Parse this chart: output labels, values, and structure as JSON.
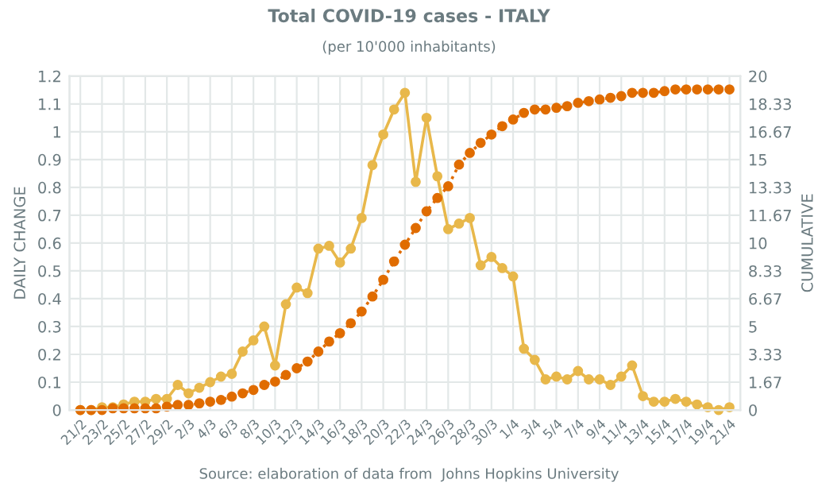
{
  "chart_data": {
    "type": "line",
    "title": "Total COVID-19 cases - ITALY",
    "subtitle": "(per 10'000 inhabitants)",
    "ylabel": "DAILY CHANGE",
    "y2label": "CUMULATIVE",
    "annotations": [
      "Source: elaboration of data from  Johns Hopkins University"
    ],
    "categories": [
      "21/2",
      null,
      "23/2",
      null,
      "25/2",
      null,
      "27/2",
      null,
      "29/2",
      null,
      "2/3",
      null,
      "4/3",
      null,
      "6/3",
      null,
      "8/3",
      null,
      "10/3",
      null,
      "12/3",
      null,
      "14/3",
      null,
      "16/3",
      null,
      "18/3",
      null,
      "20/3",
      null,
      "22/3",
      null,
      "24/3",
      null,
      "26/3",
      null,
      "28/3",
      null,
      "30/3",
      null,
      "1/4",
      null,
      "3/4",
      null,
      "5/4",
      null,
      "7/4",
      null,
      "9/4",
      null,
      "11/4",
      null,
      "13/4",
      null,
      "15/4",
      null,
      "17/4",
      null,
      "19/4",
      null,
      "21/4"
    ],
    "series": [
      {
        "color": "#e8b84b",
        "line_style": "solid",
        "values": [
          0.0,
          0.0,
          0.01,
          0.01,
          0.02,
          0.03,
          0.03,
          0.04,
          0.04,
          0.09,
          0.06,
          0.08,
          0.1,
          0.12,
          0.13,
          0.21,
          0.25,
          0.3,
          0.16,
          0.38,
          0.44,
          0.42,
          0.58,
          0.59,
          0.53,
          0.58,
          0.69,
          0.88,
          0.99,
          1.08,
          1.14,
          0.82,
          1.05,
          0.84,
          0.65,
          0.67,
          0.69,
          0.52,
          0.55,
          0.51,
          0.48,
          0.22,
          0.18,
          0.11,
          0.12,
          0.11,
          0.14,
          0.11,
          0.11,
          0.09,
          0.12,
          0.16,
          0.05,
          0.03,
          0.03,
          0.04,
          0.03,
          0.02,
          0.01,
          0.0,
          0.01
        ]
      },
      {
        "color": "#e06c00",
        "line_style": "dotted",
        "axis": "y2",
        "values": [
          0.0,
          0.0,
          0.0,
          0.1,
          0.1,
          0.1,
          0.1,
          0.1,
          0.2,
          0.3,
          0.3,
          0.4,
          0.5,
          0.6,
          0.8,
          1.0,
          1.2,
          1.5,
          1.7,
          2.1,
          2.5,
          2.9,
          3.5,
          4.1,
          4.6,
          5.2,
          5.9,
          6.8,
          7.8,
          8.9,
          9.9,
          10.9,
          11.9,
          12.7,
          13.4,
          14.7,
          15.4,
          16.0,
          16.5,
          17.0,
          17.4,
          17.8,
          18.0,
          18.0,
          18.1,
          18.2,
          18.4,
          18.5,
          18.6,
          18.7,
          18.8,
          19.0,
          19.0,
          19.0,
          19.1,
          19.2,
          19.2,
          19.2,
          19.2,
          19.2,
          19.2
        ]
      }
    ],
    "ylim": [
      0,
      1.2
    ],
    "yticks": [
      0,
      0.1,
      0.2,
      0.3,
      0.4,
      0.5,
      0.6,
      0.7,
      0.8,
      0.9,
      1,
      1.1,
      1.2
    ],
    "y2lim": [
      0,
      20
    ],
    "y2ticks": [
      0,
      {
        "value": 1.6667,
        "label": "1.67"
      },
      {
        "value": 3.3333,
        "label": "3.33"
      },
      5,
      {
        "value": 6.6667,
        "label": "6.67"
      },
      {
        "value": 8.3333,
        "label": "8.33"
      },
      10,
      {
        "value": 11.6667,
        "label": "11.67"
      },
      {
        "value": 13.3333,
        "label": "13.33"
      },
      15,
      {
        "value": 16.6667,
        "label": "16.67"
      },
      {
        "value": 18.3333,
        "label": "18.33"
      },
      20
    ],
    "grid": true,
    "marker": "circle",
    "legend": false
  }
}
